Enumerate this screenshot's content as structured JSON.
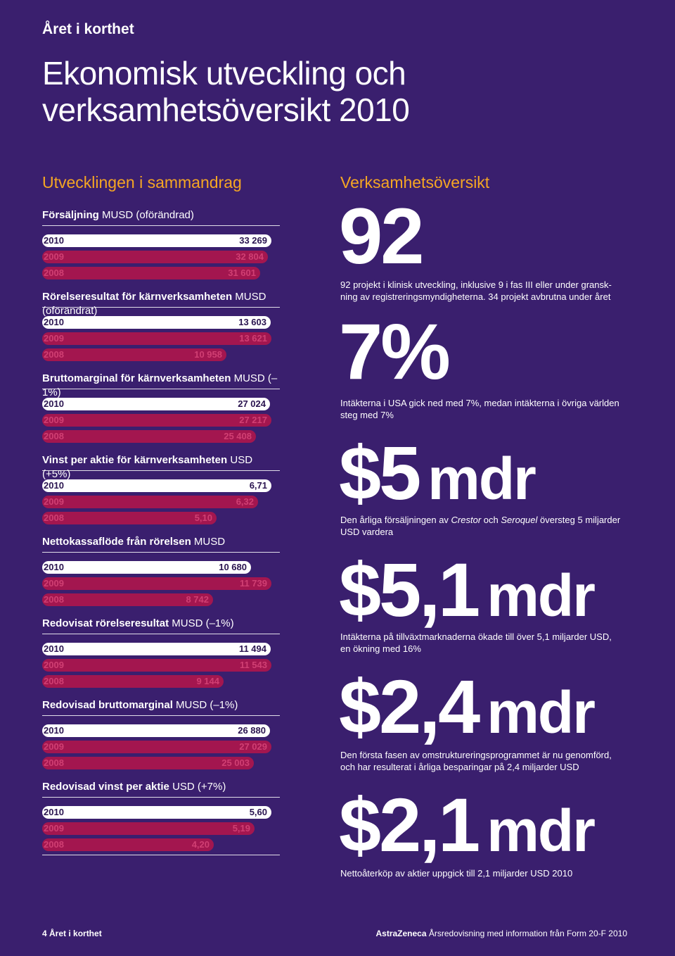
{
  "section_label": "Året i korthet",
  "title_line1": "Ekonomisk utveckling och",
  "title_line2": "verksamhetsöversikt 2010",
  "left": {
    "title": "Utvecklingen i sammandrag",
    "metrics": [
      {
        "label": "Försäljning",
        "note": "MUSD (oförändrad)",
        "bars": [
          {
            "year": "2010",
            "value": "33 269",
            "num": 33269
          },
          {
            "year": "2009",
            "value": "32 804",
            "num": 32804
          },
          {
            "year": "2008",
            "value": "31 601",
            "num": 31601
          }
        ]
      },
      {
        "label": "Rörelseresultat för kärnverksamheten",
        "note": "MUSD (oförändrat)",
        "bars": [
          {
            "year": "2010",
            "value": "13 603",
            "num": 13603
          },
          {
            "year": "2009",
            "value": "13 621",
            "num": 13621
          },
          {
            "year": "2008",
            "value": "10 958",
            "num": 10958
          }
        ]
      },
      {
        "label": "Bruttomarginal för kärnverksamheten",
        "note": "MUSD (–1%)",
        "bars": [
          {
            "year": "2010",
            "value": "27 024",
            "num": 27024
          },
          {
            "year": "2009",
            "value": "27 217",
            "num": 27217
          },
          {
            "year": "2008",
            "value": "25 408",
            "num": 25408
          }
        ]
      },
      {
        "label": "Vinst per aktie för kärnverksamheten",
        "note": "USD (+5%)",
        "bars": [
          {
            "year": "2010",
            "value": "6,71",
            "num": 6.71
          },
          {
            "year": "2009",
            "value": "6,32",
            "num": 6.32
          },
          {
            "year": "2008",
            "value": "5,10",
            "num": 5.1
          }
        ]
      },
      {
        "label": "Nettokassaflöde från rörelsen",
        "note": "MUSD",
        "bars": [
          {
            "year": "2010",
            "value": "10 680",
            "num": 10680
          },
          {
            "year": "2009",
            "value": "11 739",
            "num": 11739
          },
          {
            "year": "2008",
            "value": "8 742",
            "num": 8742
          }
        ]
      },
      {
        "label": "Redovisat rörelseresultat",
        "note": " MUSD (–1%)",
        "bars": [
          {
            "year": "2010",
            "value": "11 494",
            "num": 11494
          },
          {
            "year": "2009",
            "value": "11 543",
            "num": 11543
          },
          {
            "year": "2008",
            "value": "9 144",
            "num": 9144
          }
        ]
      },
      {
        "label": "Redovisad bruttomarginal",
        "note": "MUSD (–1%)",
        "bars": [
          {
            "year": "2010",
            "value": "26 880",
            "num": 26880
          },
          {
            "year": "2009",
            "value": "27 029",
            "num": 27029
          },
          {
            "year": "2008",
            "value": "25 003",
            "num": 25003
          }
        ]
      },
      {
        "label": "Redovisad vinst per aktie",
        "note": "USD (+7%)",
        "bars": [
          {
            "year": "2010",
            "value": "5,60",
            "num": 5.6
          },
          {
            "year": "2009",
            "value": "5,19",
            "num": 5.19
          },
          {
            "year": "2008",
            "value": "4,20",
            "num": 4.2
          }
        ]
      }
    ]
  },
  "right": {
    "title": "Verksamhetsöversikt",
    "stats": [
      {
        "number": "92",
        "unit": "",
        "desc_html": "92 projekt i klinisk utveckling, inklusive 9 i fas III eller under gransk-<br>ning av registreringsmyndigheterna. 34 projekt avbrutna under året"
      },
      {
        "number": "7%",
        "unit": "",
        "desc_html": "Intäkterna i USA gick ned med 7%, medan intäkterna i övriga världen<br>steg med 7%"
      },
      {
        "number": "$5",
        "unit": "mdr",
        "desc_html": "Den årliga försäljningen av <i>Crestor</i> och <i>Seroquel</i> översteg 5 miljarder<br>USD vardera"
      },
      {
        "number": "$5,1",
        "unit": "mdr",
        "desc_html": "Intäkterna på tillväxtmarknaderna ökade till över 5,1 miljarder USD,<br>en ökning med 16%"
      },
      {
        "number": "$2,4",
        "unit": "mdr",
        "desc_html": "Den första fasen av omstruktureringsprogrammet är nu genomförd,<br>och har resulterat i årliga besparingar på 2,4 miljarder USD"
      },
      {
        "number": "$2,1",
        "unit": "mdr",
        "desc_html": "Nettoåterköp av aktier uppgick till 2,1 miljarder USD 2010"
      }
    ]
  },
  "footer": {
    "left": "4 Året i korthet",
    "brand": "AstraZeneca",
    "right": "Årsredovisning med information från Form 20-F 2010"
  }
}
